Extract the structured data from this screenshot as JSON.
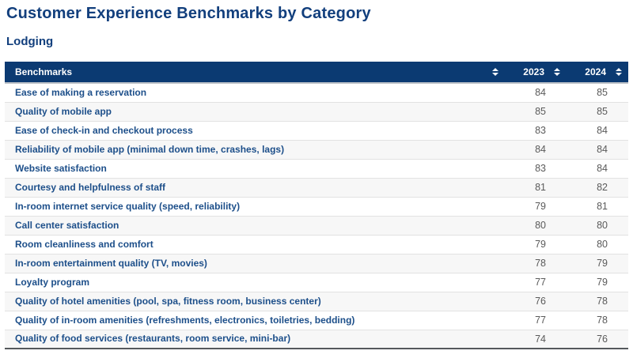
{
  "page": {
    "title": "Customer Experience Benchmarks by Category",
    "category": "Lodging"
  },
  "table": {
    "columns": [
      {
        "id": "benchmarks",
        "label": "Benchmarks",
        "sortable": true
      },
      {
        "id": "y2023",
        "label": "2023",
        "sortable": true
      },
      {
        "id": "y2024",
        "label": "2024",
        "sortable": true
      }
    ],
    "sort_icon": "up-down-sort-arrows",
    "rows": [
      {
        "benchmark": "Ease of making a reservation",
        "y2023": 84,
        "y2024": 85
      },
      {
        "benchmark": "Quality of mobile app",
        "y2023": 85,
        "y2024": 85
      },
      {
        "benchmark": "Ease of check-in and checkout process",
        "y2023": 83,
        "y2024": 84
      },
      {
        "benchmark": "Reliability of mobile app (minimal down time, crashes, lags)",
        "y2023": 84,
        "y2024": 84
      },
      {
        "benchmark": "Website satisfaction",
        "y2023": 83,
        "y2024": 84
      },
      {
        "benchmark": "Courtesy and helpfulness of staff",
        "y2023": 81,
        "y2024": 82
      },
      {
        "benchmark": "In-room internet service quality (speed, reliability)",
        "y2023": 79,
        "y2024": 81
      },
      {
        "benchmark": "Call center satisfaction",
        "y2023": 80,
        "y2024": 80
      },
      {
        "benchmark": "Room cleanliness and comfort",
        "y2023": 79,
        "y2024": 80
      },
      {
        "benchmark": "In-room entertainment quality (TV, movies)",
        "y2023": 78,
        "y2024": 79
      },
      {
        "benchmark": "Loyalty program",
        "y2023": 77,
        "y2024": 79
      },
      {
        "benchmark": "Quality of hotel amenities (pool, spa, fitness room, business center)",
        "y2023": 76,
        "y2024": 78
      },
      {
        "benchmark": "Quality of in-room amenities (refreshments, electronics, toiletries, bedding)",
        "y2023": 77,
        "y2024": 78
      },
      {
        "benchmark": "Quality of food services (restaurants, room service, mini-bar)",
        "y2023": 74,
        "y2024": 76
      }
    ]
  },
  "colors": {
    "header_background": "#0b3a72",
    "header_text": "#ffffff",
    "title_text": "#123f7d",
    "benchmark_text": "#1d4f8a",
    "value_text": "#5a5a5a",
    "row_stripe": "#f7f7f7",
    "row_border": "#e2e2e2",
    "table_bottom_border": "#55585c"
  }
}
